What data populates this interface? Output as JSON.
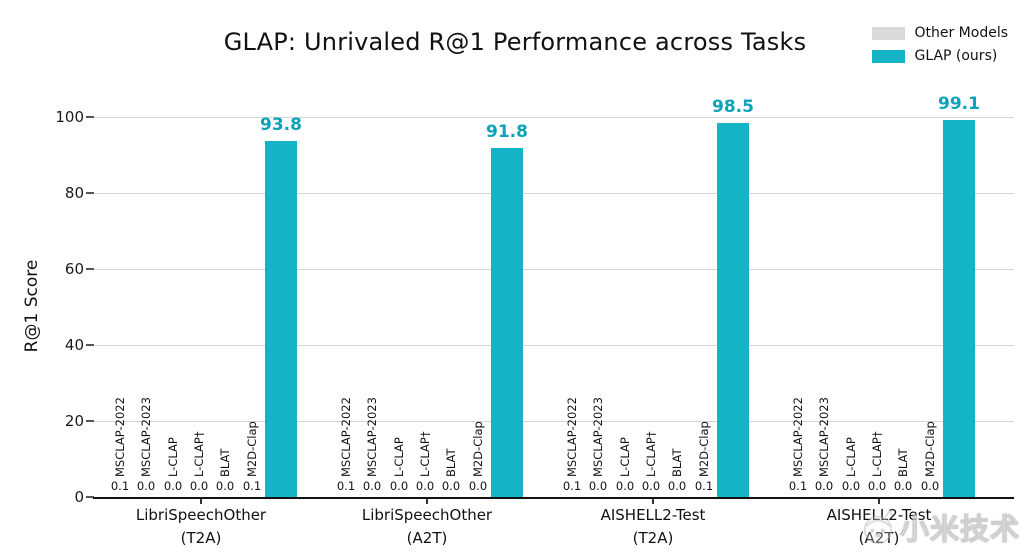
{
  "title": "GLAP: Unrivaled R@1 Performance across Tasks",
  "legend": {
    "other_label": "Other Models",
    "glap_label": "GLAP (ours)"
  },
  "watermark": {
    "text": "小米技术"
  },
  "chart_data": {
    "type": "bar",
    "title": "GLAP: Unrivaled R@1 Performance across Tasks",
    "xlabel": "",
    "ylabel": "R@1 Score",
    "ylim": [
      0,
      100
    ],
    "yticks": [
      0,
      20,
      40,
      60,
      80,
      100
    ],
    "grid": true,
    "legend_position": "top-right",
    "colors": {
      "other": "#d9d9d9",
      "glap": "#14b3c6",
      "glap_value_label": "#0ba3b9",
      "gridline": "#d4d4d4"
    },
    "model_labels": [
      "MSCLAP-2022",
      "MSCLAP-2023",
      "L-CLAP",
      "L-CLAP†",
      "BLAT",
      "M2D-Clap"
    ],
    "groups": [
      {
        "category": "LibriSpeechOther",
        "task": "(T2A)",
        "other_values": [
          0.1,
          0.0,
          0.0,
          0.0,
          0.0,
          0.1
        ],
        "glap_value": 93.8
      },
      {
        "category": "LibriSpeechOther",
        "task": "(A2T)",
        "other_values": [
          0.1,
          0.0,
          0.0,
          0.0,
          0.0,
          0.0
        ],
        "glap_value": 91.8
      },
      {
        "category": "AISHELL2-Test",
        "task": "(T2A)",
        "other_values": [
          0.1,
          0.0,
          0.0,
          0.0,
          0.0,
          0.1
        ],
        "glap_value": 98.5
      },
      {
        "category": "AISHELL2-Test",
        "task": "(A2T)",
        "other_values": [
          0.1,
          0.0,
          0.0,
          0.0,
          0.0,
          0.0
        ],
        "glap_value": 99.1
      }
    ]
  }
}
